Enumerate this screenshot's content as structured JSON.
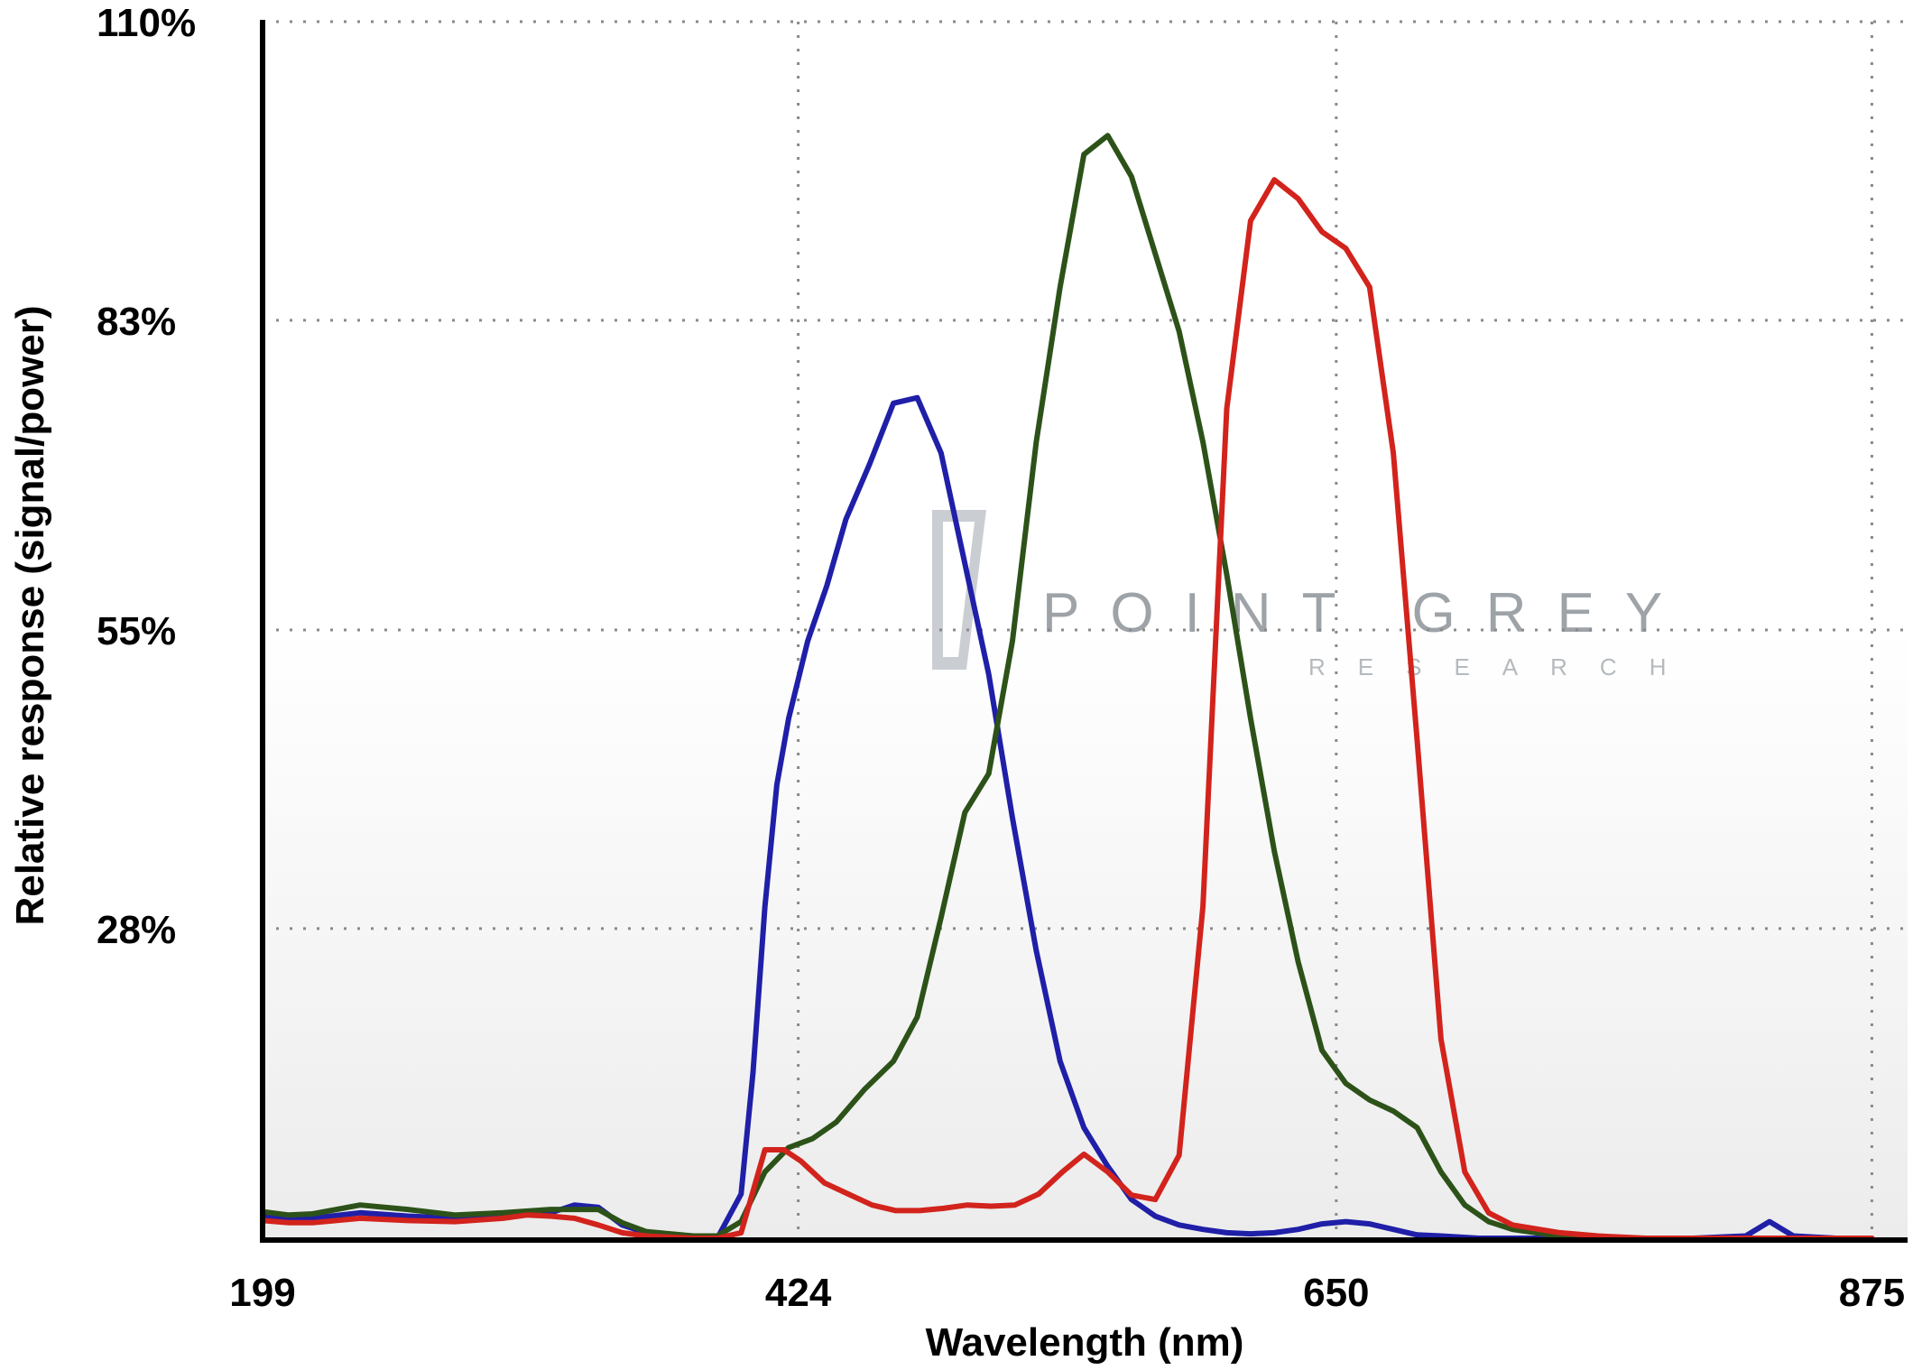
{
  "chart_data": {
    "type": "line",
    "title": "",
    "xlabel": "Wavelength (nm)",
    "ylabel": "Relative response (signal/power)",
    "xlim": [
      199,
      890
    ],
    "ylim": [
      0,
      110
    ],
    "x_ticks": [
      199,
      424,
      650,
      875
    ],
    "x_tick_labels": [
      "199",
      "424",
      "650",
      "875"
    ],
    "y_ticks": [
      28,
      55,
      83,
      110
    ],
    "y_tick_labels": [
      "28%",
      "55%",
      "83%",
      "110%"
    ],
    "grid": true,
    "legend": "none",
    "watermark": {
      "main": "POINT GREY",
      "sub": "RESEARCH"
    },
    "series": [
      {
        "color": "#1f1fa8",
        "points": [
          [
            199,
            1.9
          ],
          [
            210,
            1.8
          ],
          [
            220,
            1.8
          ],
          [
            240,
            2.3
          ],
          [
            260,
            2.0
          ],
          [
            280,
            1.8
          ],
          [
            300,
            2.0
          ],
          [
            320,
            2.3
          ],
          [
            330,
            3.0
          ],
          [
            340,
            2.8
          ],
          [
            350,
            1.2
          ],
          [
            360,
            0.5
          ],
          [
            380,
            0
          ],
          [
            390,
            0
          ],
          [
            400,
            4
          ],
          [
            405,
            15
          ],
          [
            410,
            30
          ],
          [
            415,
            41
          ],
          [
            420,
            47
          ],
          [
            428,
            54
          ],
          [
            436,
            59
          ],
          [
            444,
            65
          ],
          [
            454,
            70
          ],
          [
            464,
            75.5
          ],
          [
            474,
            76.0
          ],
          [
            484,
            71
          ],
          [
            494,
            61
          ],
          [
            504,
            51
          ],
          [
            514,
            38
          ],
          [
            524,
            26
          ],
          [
            534,
            16
          ],
          [
            544,
            10
          ],
          [
            554,
            6.5
          ],
          [
            564,
            3.5
          ],
          [
            574,
            2.0
          ],
          [
            584,
            1.2
          ],
          [
            594,
            0.8
          ],
          [
            604,
            0.5
          ],
          [
            614,
            0.4
          ],
          [
            624,
            0.5
          ],
          [
            634,
            0.8
          ],
          [
            644,
            1.3
          ],
          [
            654,
            1.5
          ],
          [
            664,
            1.3
          ],
          [
            674,
            0.8
          ],
          [
            684,
            0.3
          ],
          [
            694,
            0.2
          ],
          [
            710,
            0
          ],
          [
            800,
            0
          ],
          [
            822,
            0.2
          ],
          [
            832,
            1.5
          ],
          [
            842,
            0.2
          ],
          [
            860,
            0
          ],
          [
            875,
            0
          ]
        ]
      },
      {
        "color": "#2d5219",
        "points": [
          [
            199,
            2.4
          ],
          [
            210,
            2.1
          ],
          [
            220,
            2.2
          ],
          [
            240,
            3.0
          ],
          [
            260,
            2.6
          ],
          [
            280,
            2.1
          ],
          [
            300,
            2.3
          ],
          [
            320,
            2.6
          ],
          [
            340,
            2.6
          ],
          [
            350,
            1.4
          ],
          [
            360,
            0.6
          ],
          [
            380,
            0.2
          ],
          [
            390,
            0.2
          ],
          [
            400,
            1.5
          ],
          [
            410,
            6
          ],
          [
            420,
            8.2
          ],
          [
            430,
            9.0
          ],
          [
            440,
            10.5
          ],
          [
            452,
            13.5
          ],
          [
            464,
            16
          ],
          [
            474,
            20
          ],
          [
            484,
            29
          ],
          [
            494,
            38.5
          ],
          [
            504,
            42
          ],
          [
            514,
            54
          ],
          [
            524,
            72
          ],
          [
            534,
            86
          ],
          [
            544,
            98
          ],
          [
            554,
            99.7
          ],
          [
            564,
            96
          ],
          [
            574,
            89
          ],
          [
            584,
            82
          ],
          [
            594,
            72
          ],
          [
            604,
            60
          ],
          [
            614,
            47
          ],
          [
            624,
            35
          ],
          [
            634,
            25
          ],
          [
            644,
            17
          ],
          [
            654,
            14
          ],
          [
            664,
            12.5
          ],
          [
            674,
            11.5
          ],
          [
            684,
            10
          ],
          [
            694,
            6
          ],
          [
            704,
            3
          ],
          [
            714,
            1.5
          ],
          [
            724,
            0.8
          ],
          [
            740,
            0.3
          ],
          [
            760,
            0
          ],
          [
            875,
            0
          ]
        ]
      },
      {
        "color": "#d2231c",
        "points": [
          [
            199,
            1.6
          ],
          [
            210,
            1.4
          ],
          [
            220,
            1.4
          ],
          [
            240,
            1.8
          ],
          [
            260,
            1.6
          ],
          [
            280,
            1.5
          ],
          [
            300,
            1.8
          ],
          [
            310,
            2.1
          ],
          [
            320,
            2.0
          ],
          [
            330,
            1.8
          ],
          [
            340,
            1.2
          ],
          [
            350,
            0.5
          ],
          [
            360,
            0.2
          ],
          [
            380,
            0
          ],
          [
            390,
            0
          ],
          [
            400,
            0.5
          ],
          [
            410,
            8.0
          ],
          [
            418,
            8.0
          ],
          [
            425,
            7.0
          ],
          [
            435,
            5.0
          ],
          [
            445,
            4.0
          ],
          [
            455,
            3.0
          ],
          [
            465,
            2.5
          ],
          [
            475,
            2.5
          ],
          [
            485,
            2.7
          ],
          [
            495,
            3.0
          ],
          [
            505,
            2.9
          ],
          [
            515,
            3.0
          ],
          [
            525,
            4.0
          ],
          [
            535,
            6.0
          ],
          [
            544,
            7.6
          ],
          [
            554,
            6.0
          ],
          [
            564,
            3.9
          ],
          [
            574,
            3.5
          ],
          [
            584,
            7.5
          ],
          [
            594,
            30
          ],
          [
            604,
            75
          ],
          [
            614,
            92
          ],
          [
            624,
            95.7
          ],
          [
            634,
            94
          ],
          [
            644,
            91
          ],
          [
            654,
            89.5
          ],
          [
            664,
            86
          ],
          [
            674,
            71
          ],
          [
            684,
            45
          ],
          [
            694,
            18
          ],
          [
            704,
            6
          ],
          [
            714,
            2.3
          ],
          [
            724,
            1.2
          ],
          [
            744,
            0.5
          ],
          [
            760,
            0.2
          ],
          [
            780,
            0
          ],
          [
            875,
            0
          ]
        ]
      }
    ]
  }
}
